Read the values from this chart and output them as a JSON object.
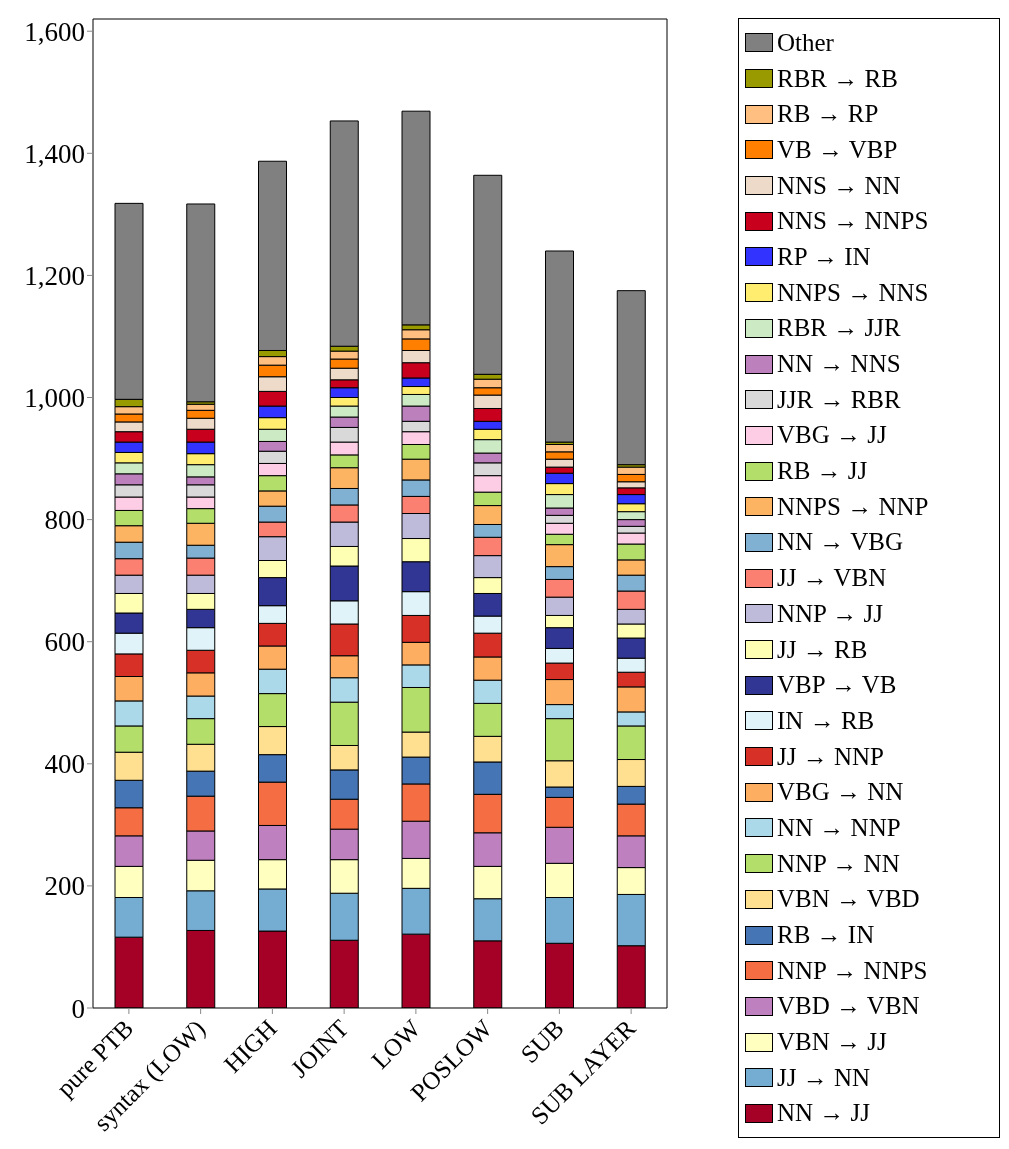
{
  "chart_data": {
    "type": "bar",
    "stacked": true,
    "categories": [
      "pure PTB",
      "syntax (LOW)",
      "HIGH",
      "JOINT",
      "LOW",
      "POSLOW",
      "SUB",
      "SUB LAYER"
    ],
    "ylim": [
      0,
      1620
    ],
    "yticks": [
      {
        "value": 0,
        "label": "0"
      },
      {
        "value": 200,
        "label": "200"
      },
      {
        "value": 400,
        "label": "400"
      },
      {
        "value": 600,
        "label": "600"
      },
      {
        "value": 800,
        "label": "800"
      },
      {
        "value": 1000,
        "label": "1,000"
      },
      {
        "value": 1200,
        "label": "1,200"
      },
      {
        "value": 1400,
        "label": "1,400"
      },
      {
        "value": 1600,
        "label": "1,600"
      }
    ],
    "grid": false,
    "legend": "right",
    "series": [
      {
        "name": "NN → JJ",
        "color": "#a50026",
        "values": [
          116,
          127,
          126,
          111,
          121,
          110,
          106,
          102
        ]
      },
      {
        "name": "JJ → NN",
        "color": "#74add1",
        "values": [
          65,
          65,
          69,
          77,
          75,
          69,
          75,
          84
        ]
      },
      {
        "name": "VBN → JJ",
        "color": "#ffffbf",
        "values": [
          51,
          50,
          48,
          55,
          49,
          53,
          56,
          44
        ]
      },
      {
        "name": "VBD → VBN",
        "color": "#bf80bf",
        "values": [
          50,
          48,
          56,
          50,
          61,
          55,
          59,
          52
        ]
      },
      {
        "name": "NNP → NNPS",
        "color": "#f46d43",
        "values": [
          46,
          57,
          71,
          49,
          61,
          63,
          49,
          52
        ]
      },
      {
        "name": "RB → IN",
        "color": "#4575b4",
        "values": [
          45,
          41,
          45,
          48,
          44,
          53,
          17,
          29
        ]
      },
      {
        "name": "VBN → VBD",
        "color": "#fee090",
        "values": [
          46,
          44,
          46,
          40,
          41,
          42,
          43,
          44
        ]
      },
      {
        "name": "NNP → NN",
        "color": "#b3de69",
        "values": [
          43,
          42,
          54,
          71,
          73,
          54,
          69,
          55
        ]
      },
      {
        "name": "NN → NNP",
        "color": "#abd9e9",
        "values": [
          41,
          37,
          40,
          40,
          37,
          38,
          23,
          23
        ]
      },
      {
        "name": "VBG → NN",
        "color": "#fdae61",
        "values": [
          40,
          38,
          38,
          36,
          37,
          38,
          41,
          41
        ]
      },
      {
        "name": "JJ → NNP",
        "color": "#d73027",
        "values": [
          37,
          37,
          37,
          52,
          44,
          39,
          27,
          24
        ]
      },
      {
        "name": "IN → RB",
        "color": "#e0f3f8",
        "values": [
          34,
          37,
          29,
          38,
          39,
          28,
          24,
          23
        ]
      },
      {
        "name": "VBP → VB",
        "color": "#313695",
        "values": [
          33,
          30,
          46,
          57,
          49,
          37,
          34,
          33
        ]
      },
      {
        "name": "JJ → RB",
        "color": "#ffffb3",
        "values": [
          32,
          26,
          28,
          32,
          38,
          26,
          20,
          23
        ]
      },
      {
        "name": "NNP → JJ",
        "color": "#bebada",
        "values": [
          30,
          30,
          39,
          40,
          41,
          36,
          30,
          24
        ]
      },
      {
        "name": "JJ → VBN",
        "color": "#fb8072",
        "values": [
          27,
          28,
          24,
          28,
          28,
          30,
          29,
          30
        ]
      },
      {
        "name": "NN → VBG",
        "color": "#80b1d3",
        "values": [
          27,
          21,
          26,
          27,
          27,
          21,
          21,
          26
        ]
      },
      {
        "name": "NNPS → NNP",
        "color": "#fdb462",
        "values": [
          27,
          36,
          25,
          34,
          34,
          31,
          36,
          25
        ]
      },
      {
        "name": "RB → JJ",
        "color": "#b3de69",
        "values": [
          25,
          24,
          25,
          21,
          24,
          22,
          17,
          26
        ]
      },
      {
        "name": "VBG → JJ",
        "color": "#fccde5",
        "values": [
          22,
          19,
          20,
          21,
          21,
          27,
          18,
          18
        ]
      },
      {
        "name": "JJR → RBR",
        "color": "#d9d9d9",
        "values": [
          20,
          20,
          20,
          24,
          17,
          21,
          13,
          11
        ]
      },
      {
        "name": "NN → NNS",
        "color": "#bc80bd",
        "values": [
          18,
          13,
          16,
          17,
          25,
          16,
          12,
          11
        ]
      },
      {
        "name": "RBR → JJR",
        "color": "#ccebc5",
        "values": [
          18,
          20,
          20,
          18,
          19,
          22,
          22,
          13
        ]
      },
      {
        "name": "NNPS → NNS",
        "color": "#ffed6f",
        "values": [
          17,
          18,
          19,
          14,
          13,
          17,
          18,
          13
        ]
      },
      {
        "name": "RP → IN",
        "color": "#3333ff",
        "values": [
          17,
          19,
          19,
          16,
          14,
          13,
          17,
          15
        ]
      },
      {
        "name": "NNS → NNPS",
        "color": "#c8001e",
        "values": [
          17,
          21,
          24,
          13,
          25,
          21,
          10,
          11
        ]
      },
      {
        "name": "NNS → NN",
        "color": "#eddac8",
        "values": [
          16,
          18,
          24,
          19,
          20,
          22,
          13,
          10
        ]
      },
      {
        "name": "VB → VBP",
        "color": "#ff8000",
        "values": [
          13,
          13,
          19,
          15,
          19,
          12,
          12,
          12
        ]
      },
      {
        "name": "RB → RP",
        "color": "#ffbf80",
        "values": [
          12,
          10,
          14,
          13,
          15,
          14,
          12,
          12
        ]
      },
      {
        "name": "RBR → RB",
        "color": "#999900",
        "values": [
          12,
          4,
          10,
          8,
          8,
          8,
          4,
          4
        ]
      },
      {
        "name": "Other",
        "color": "#808080",
        "values": [
          321,
          324,
          310,
          369,
          350,
          326,
          313,
          285
        ]
      }
    ]
  }
}
